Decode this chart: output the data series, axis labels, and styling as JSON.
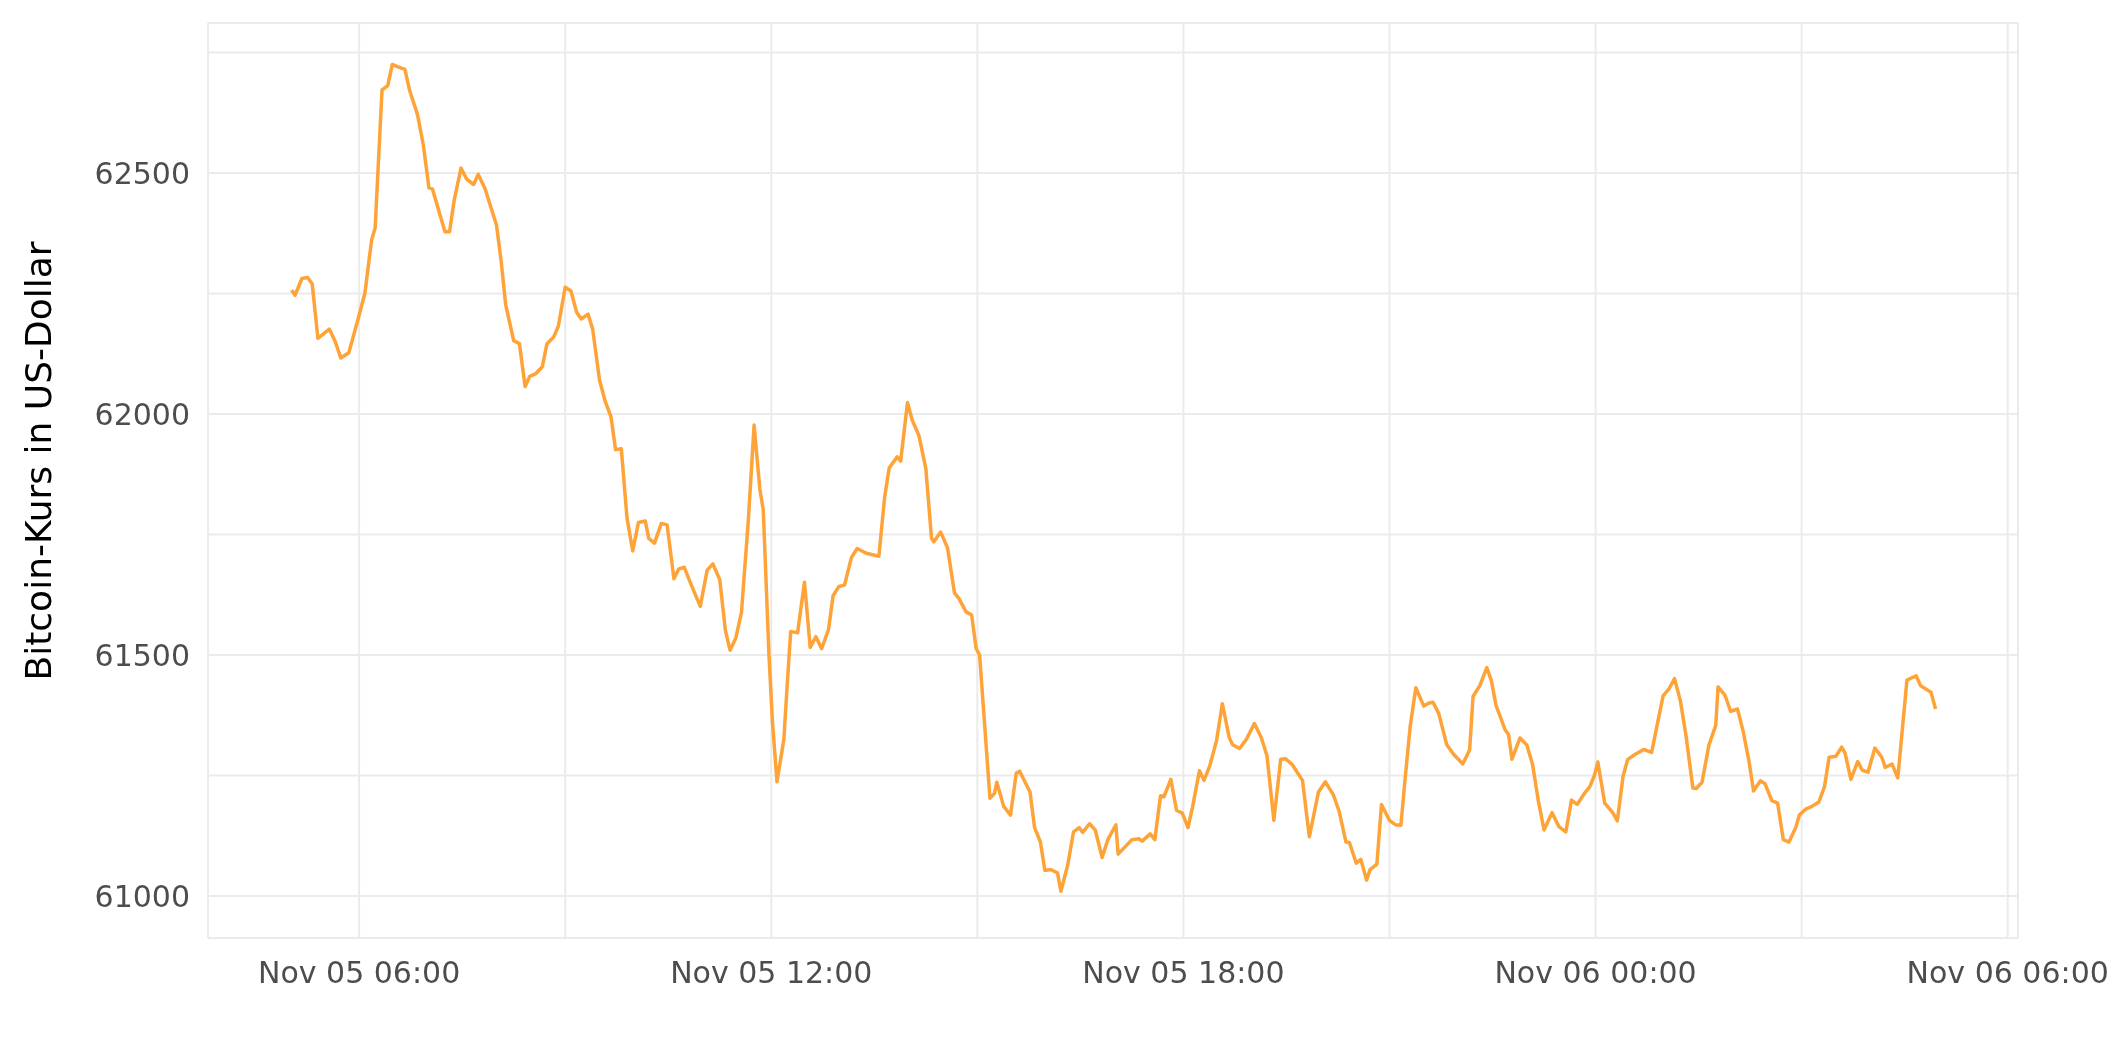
{
  "chart_data": {
    "type": "line",
    "ylabel": "Bitcoin-Kurs in US-Dollar",
    "xlim": [
      "--11-05T03:48",
      "--11-06T06:09"
    ],
    "ylim": [
      60913,
      62811
    ],
    "xticks": [
      {
        "value": "--11-05T06:00",
        "label": "Nov 05 06:00"
      },
      {
        "value": "--11-05T09:00",
        "label": null
      },
      {
        "value": "--11-05T12:00",
        "label": "Nov 05 12:00"
      },
      {
        "value": "--11-05T15:00",
        "label": null
      },
      {
        "value": "--11-05T18:00",
        "label": "Nov 05 18:00"
      },
      {
        "value": "--11-05T21:00",
        "label": null
      },
      {
        "value": "--11-06T00:00",
        "label": "Nov 06 00:00"
      },
      {
        "value": "--11-06T03:00",
        "label": null
      },
      {
        "value": "--11-06T06:00",
        "label": "Nov 06 06:00"
      }
    ],
    "yticks": [
      61000,
      {
        "value": 61250,
        "label": null
      },
      61500,
      {
        "value": 61750,
        "label": null
      },
      62000,
      {
        "value": 62250,
        "label": null
      },
      62500,
      {
        "value": 62750,
        "label": null
      }
    ],
    "grid": true,
    "marker": "none",
    "line_style": "solid",
    "series": [
      {
        "color": "#fea337",
        "x": [
          "--11-05T05:01",
          "--11-05T05:04",
          "--11-05T05:10",
          "--11-05T05:15",
          "--11-05T05:19",
          "--11-05T05:24",
          "--11-05T05:34",
          "--11-05T05:39",
          "--11-05T05:44",
          "--11-05T05:51",
          "--11-05T05:59",
          "--11-05T06:05",
          "--11-05T06:11",
          "--11-05T06:14",
          "--11-05T06:20",
          "--11-05T06:25",
          "--11-05T06:29",
          "--11-05T06:34",
          "--11-05T06:40",
          "--11-05T06:44",
          "--11-05T06:51",
          "--11-05T06:56",
          "--11-05T07:01",
          "--11-05T07:04",
          "--11-05T07:09",
          "--11-05T07:15",
          "--11-05T07:19",
          "--11-05T07:23",
          "--11-05T07:29",
          "--11-05T07:34",
          "--11-05T07:40",
          "--11-05T07:44",
          "--11-05T07:50",
          "--11-05T08:00",
          "--11-05T08:04",
          "--11-05T08:08",
          "--11-05T08:15",
          "--11-05T08:20",
          "--11-05T08:25",
          "--11-05T08:29",
          "--11-05T08:34",
          "--11-05T08:40",
          "--11-05T08:44",
          "--11-05T08:50",
          "--11-05T08:54",
          "--11-05T09:00",
          "--11-05T09:05",
          "--11-05T09:10",
          "--11-05T09:14",
          "--11-05T09:20",
          "--11-05T09:24",
          "--11-05T09:30",
          "--11-05T09:35",
          "--11-05T09:40",
          "--11-05T09:44",
          "--11-05T09:49",
          "--11-05T09:54",
          "--11-05T09:59",
          "--11-05T10:04",
          "--11-05T10:10",
          "--11-05T10:13",
          "--11-05T10:18",
          "--11-05T10:24",
          "--11-05T10:29",
          "--11-05T10:35",
          "--11-05T10:39",
          "--11-05T10:44",
          "--11-05T10:50",
          "--11-05T10:58",
          "--11-05T11:04",
          "--11-05T11:09",
          "--11-05T11:15",
          "--11-05T11:20",
          "--11-05T11:24",
          "--11-05T11:29",
          "--11-05T11:34",
          "--11-05T11:40",
          "--11-05T11:45",
          "--11-05T11:50",
          "--11-05T11:53",
          "--11-05T11:58",
          "--11-05T12:01",
          "--11-05T12:05",
          "--11-05T12:11",
          "--11-05T12:14",
          "--11-05T12:17",
          "--11-05T12:23",
          "--11-05T12:29",
          "--11-05T12:34",
          "--11-05T12:39",
          "--11-05T12:44",
          "--11-05T12:50",
          "--11-05T12:54",
          "--11-05T12:59",
          "--11-05T13:04",
          "--11-05T13:10",
          "--11-05T13:15",
          "--11-05T13:23",
          "--11-05T13:34",
          "--11-05T13:39",
          "--11-05T13:43",
          "--11-05T13:50",
          "--11-05T13:53",
          "--11-05T13:59",
          "--11-05T14:03",
          "--11-05T14:09",
          "--11-05T14:15",
          "--11-05T14:20",
          "--11-05T14:22",
          "--11-05T14:28",
          "--11-05T14:34",
          "--11-05T14:40",
          "--11-05T14:44",
          "--11-05T14:50",
          "--11-05T14:55",
          "--11-05T14:59",
          "--11-05T15:02",
          "--11-05T15:11",
          "--11-05T15:15",
          "--11-05T15:17",
          "--11-05T15:23",
          "--11-05T15:29",
          "--11-05T15:34",
          "--11-05T15:37",
          "--11-05T15:46",
          "--11-05T15:50",
          "--11-05T15:55",
          "--11-05T15:59",
          "--11-05T16:04",
          "--11-05T16:10",
          "--11-05T16:13",
          "--11-05T16:19",
          "--11-05T16:24",
          "--11-05T16:29",
          "--11-05T16:32",
          "--11-05T16:38",
          "--11-05T16:43",
          "--11-05T16:49",
          "--11-05T16:54",
          "--11-05T17:01",
          "--11-05T17:03",
          "--11-05T17:15",
          "--11-05T17:21",
          "--11-05T17:24",
          "--11-05T17:31",
          "--11-05T17:35",
          "--11-05T17:40",
          "--11-05T17:43",
          "--11-05T17:49",
          "--11-05T17:54",
          "--11-05T17:59",
          "--11-05T18:04",
          "--11-05T18:08",
          "--11-05T18:14",
          "--11-05T18:18",
          "--11-05T18:23",
          "--11-05T18:29",
          "--11-05T18:34",
          "--11-05T18:40",
          "--11-05T18:43",
          "--11-05T18:49",
          "--11-05T18:55",
          "--11-05T19:02",
          "--11-05T19:08",
          "--11-05T19:13",
          "--11-05T19:19",
          "--11-05T19:25",
          "--11-05T19:29",
          "--11-05T19:35",
          "--11-05T19:44",
          "--11-05T19:50",
          "--11-05T19:58",
          "--11-05T20:04",
          "--11-05T20:11",
          "--11-05T20:16",
          "--11-05T20:22",
          "--11-05T20:25",
          "--11-05T20:31",
          "--11-05T20:35",
          "--11-05T20:40",
          "--11-05T20:43",
          "--11-05T20:49",
          "--11-05T20:53",
          "--11-05T21:00",
          "--11-05T21:05",
          "--11-05T21:10",
          "--11-05T21:13",
          "--11-05T21:18",
          "--11-05T21:23",
          "--11-05T21:30",
          "--11-05T21:34",
          "--11-05T21:38",
          "--11-05T21:43",
          "--11-05T21:50",
          "--11-05T21:56",
          "--11-05T22:04",
          "--11-05T22:10",
          "--11-05T22:13",
          "--11-05T22:19",
          "--11-05T22:25",
          "--11-05T22:29",
          "--11-05T22:33",
          "--11-05T22:41",
          "--11-05T22:44",
          "--11-05T22:47",
          "--11-05T22:54",
          "--11-05T23:00",
          "--11-05T23:05",
          "--11-05T23:10",
          "--11-05T23:15",
          "--11-05T23:22",
          "--11-05T23:28",
          "--11-05T23:34",
          "--11-05T23:39",
          "--11-05T23:44",
          "--11-05T23:50",
          "--11-05T23:55",
          "--11-05T23:59",
          "--11-06T00:02",
          "--11-06T00:08",
          "--11-06T00:15",
          "--11-06T00:19",
          "--11-06T00:24",
          "--11-06T00:28",
          "--11-06T00:34",
          "--11-06T00:42",
          "--11-06T00:49",
          "--11-06T00:54",
          "--11-06T00:59",
          "--11-06T01:04",
          "--11-06T01:09",
          "--11-06T01:14",
          "--11-06T01:19",
          "--11-06T01:25",
          "--11-06T01:28",
          "--11-06T01:33",
          "--11-06T01:39",
          "--11-06T01:45",
          "--11-06T01:47",
          "--11-06T01:53",
          "--11-06T01:58",
          "--11-06T02:04",
          "--11-06T02:09",
          "--11-06T02:14",
          "--11-06T02:18",
          "--11-06T02:24",
          "--11-06T02:28",
          "--11-06T02:34",
          "--11-06T02:39",
          "--11-06T02:44",
          "--11-06T02:49",
          "--11-06T02:55",
          "--11-06T02:58",
          "--11-06T03:04",
          "--11-06T03:09",
          "--11-06T03:15",
          "--11-06T03:20",
          "--11-06T03:24",
          "--11-06T03:30",
          "--11-06T03:35",
          "--11-06T03:38",
          "--11-06T03:43",
          "--11-06T03:49",
          "--11-06T03:53",
          "--11-06T03:58",
          "--11-06T04:04",
          "--11-06T04:10",
          "--11-06T04:13",
          "--11-06T04:19",
          "--11-06T04:24",
          "--11-06T04:32",
          "--11-06T04:40",
          "--11-06T04:44",
          "--11-06T04:53",
          "--11-06T04:57"
        ],
        "values": [
          62257,
          62246,
          62281,
          62283,
          62270,
          62157,
          62176,
          62151,
          62116,
          62127,
          62196,
          62250,
          62362,
          62386,
          62672,
          62681,
          62725,
          62720,
          62715,
          62672,
          62621,
          62559,
          62469,
          62467,
          62426,
          62378,
          62378,
          62443,
          62510,
          62487,
          62476,
          62497,
          62467,
          62392,
          62318,
          62227,
          62152,
          62146,
          62057,
          62078,
          62083,
          62098,
          62145,
          62160,
          62182,
          62263,
          62255,
          62211,
          62197,
          62207,
          62176,
          62070,
          62026,
          61994,
          61926,
          61928,
          61784,
          61716,
          61775,
          61778,
          61742,
          61732,
          61773,
          61770,
          61658,
          61678,
          61682,
          61646,
          61601,
          61676,
          61689,
          61656,
          61550,
          61510,
          61535,
          61589,
          61781,
          61977,
          61845,
          61801,
          61500,
          61363,
          61237,
          61325,
          61441,
          61549,
          61546,
          61651,
          61516,
          61538,
          61513,
          61553,
          61623,
          61642,
          61645,
          61702,
          61721,
          61711,
          61705,
          61827,
          61888,
          61911,
          61902,
          62024,
          61988,
          61955,
          61887,
          61742,
          61735,
          61755,
          61722,
          61629,
          61617,
          61590,
          61583,
          61513,
          61500,
          61203,
          61213,
          61236,
          61186,
          61168,
          61255,
          61259,
          61216,
          61142,
          61113,
          61053,
          61055,
          61048,
          61010,
          61065,
          61133,
          61142,
          61132,
          61150,
          61137,
          61080,
          61117,
          61148,
          61087,
          61117,
          61119,
          61114,
          61129,
          61117,
          61208,
          61206,
          61242,
          61178,
          61172,
          61142,
          61185,
          61260,
          61240,
          61270,
          61323,
          61399,
          61329,
          61314,
          61306,
          61325,
          61358,
          61329,
          61291,
          61157,
          61284,
          61285,
          61273,
          61240,
          61123,
          61216,
          61237,
          61210,
          61176,
          61112,
          61111,
          61068,
          61076,
          61033,
          61055,
          61066,
          61190,
          61157,
          61148,
          61147,
          61227,
          61350,
          61432,
          61394,
          61400,
          61402,
          61379,
          61314,
          61294,
          61274,
          61303,
          61414,
          61437,
          61474,
          61447,
          61396,
          61345,
          61335,
          61284,
          61328,
          61313,
          61273,
          61198,
          61137,
          61173,
          61144,
          61133,
          61199,
          61190,
          61212,
          61227,
          61250,
          61278,
          61193,
          61173,
          61156,
          61248,
          61283,
          61293,
          61304,
          61298,
          61357,
          61415,
          61429,
          61451,
          61406,
          61333,
          61224,
          61223,
          61236,
          61313,
          61354,
          61434,
          61417,
          61383,
          61388,
          61341,
          61280,
          61218,
          61239,
          61233,
          61198,
          61193,
          61117,
          61112,
          61143,
          61168,
          61181,
          61186,
          61195,
          61227,
          61288,
          61290,
          61309,
          61296,
          61242,
          61279,
          61261,
          61257,
          61307,
          61288,
          61267,
          61274,
          61245,
          61448,
          61457,
          61436,
          61423,
          61388
        ]
      }
    ]
  }
}
